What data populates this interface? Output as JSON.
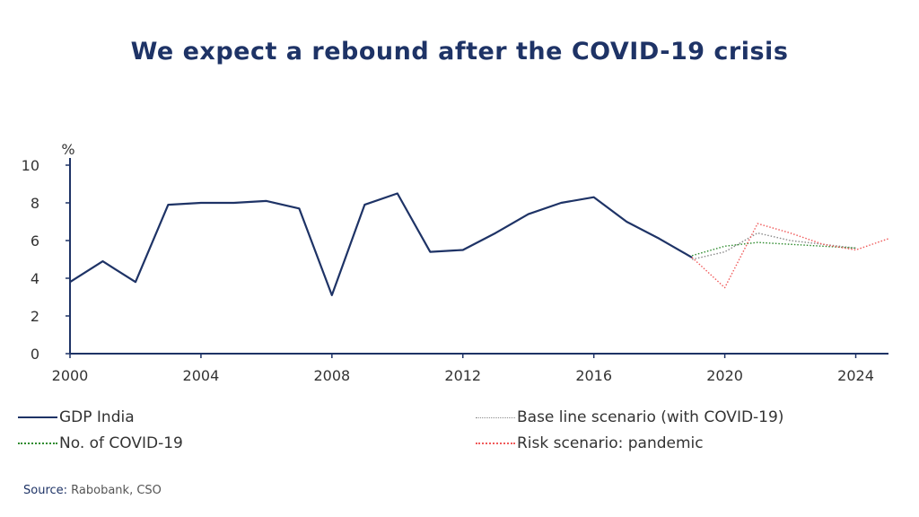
{
  "title": "We expect a rebound after the COVID-19 crisis",
  "source": {
    "label": "Source:",
    "text": " Rabobank, CSO"
  },
  "colors": {
    "title": "#1e3366",
    "gdp": "#1e3366",
    "base": "#8a8a8a",
    "covid": "#2e8b2e",
    "risk": "#f05a5a",
    "axis": "#1e3366"
  },
  "chart_data": {
    "type": "line",
    "title": "We expect a rebound after the COVID-19 crisis",
    "xlabel": "",
    "ylabel": "%",
    "xlim": [
      2000,
      2025
    ],
    "ylim": [
      0,
      10
    ],
    "x_ticks": [
      2000,
      2004,
      2008,
      2012,
      2016,
      2020,
      2024
    ],
    "y_ticks": [
      0,
      2,
      4,
      6,
      8,
      10
    ],
    "grid": false,
    "legend_position": "bottom",
    "series": [
      {
        "name": "GDP India",
        "style": "solid",
        "color": "#1e3366",
        "x": [
          2000,
          2001,
          2002,
          2003,
          2004,
          2005,
          2006,
          2007,
          2008,
          2009,
          2010,
          2011,
          2012,
          2013,
          2014,
          2015,
          2016,
          2017,
          2018,
          2019
        ],
        "y": [
          3.8,
          4.9,
          3.8,
          7.9,
          8.0,
          8.0,
          8.1,
          7.7,
          3.1,
          7.9,
          8.5,
          5.4,
          5.5,
          6.4,
          7.4,
          8.0,
          8.3,
          7.0,
          6.1,
          5.1
        ]
      },
      {
        "name": "Base line scenario (with COVID-19)",
        "style": "dotted",
        "color": "#8a8a8a",
        "x": [
          2019,
          2020,
          2021,
          2022,
          2023,
          2024
        ],
        "y": [
          5.0,
          5.4,
          6.4,
          6.0,
          5.8,
          5.6
        ]
      },
      {
        "name": "No. of COVID-19",
        "style": "dotted",
        "color": "#2e8b2e",
        "x": [
          2019,
          2020,
          2021,
          2022,
          2023,
          2024
        ],
        "y": [
          5.2,
          5.7,
          5.9,
          5.8,
          5.7,
          5.6
        ]
      },
      {
        "name": "Risk scenario: pandemic",
        "style": "dotted",
        "color": "#f05a5a",
        "x": [
          2019,
          2020,
          2021,
          2022,
          2023,
          2024,
          2025
        ],
        "y": [
          5.1,
          3.5,
          6.9,
          6.4,
          5.8,
          5.5,
          6.1
        ]
      }
    ]
  }
}
